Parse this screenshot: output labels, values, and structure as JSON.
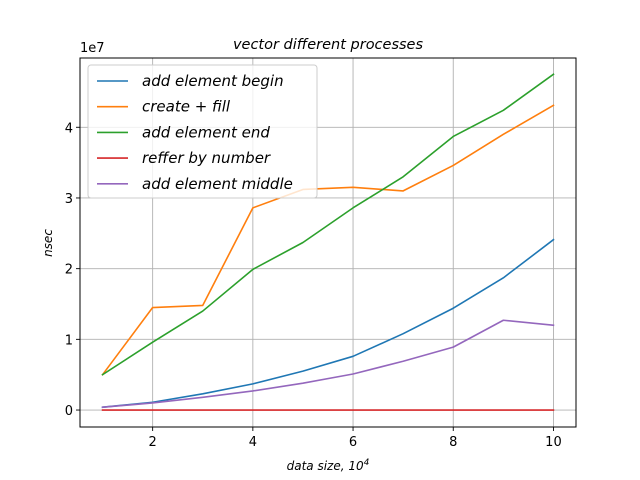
{
  "chart_data": {
    "type": "line",
    "title": "vector different processes",
    "xlabel": "data size, 10^4",
    "xlabel_text": "data size, 10",
    "xlabel_sup": "4",
    "ylabel": "nsec",
    "y_multiplier": "1e7",
    "xlim": [
      0.55,
      10.45
    ],
    "ylim": [
      -0.24,
      4.98
    ],
    "xticks": [
      2,
      4,
      6,
      8,
      10
    ],
    "yticks": [
      0,
      1,
      2,
      3,
      4
    ],
    "grid": true,
    "legend_position": "upper-left",
    "x": [
      1,
      2,
      3,
      4,
      5,
      6,
      7,
      8,
      9,
      10
    ],
    "series": [
      {
        "name": "add element begin",
        "color": "#1f77b4",
        "values": [
          0.04,
          0.11,
          0.23,
          0.37,
          0.55,
          0.76,
          1.08,
          1.44,
          1.87,
          2.41
        ]
      },
      {
        "name": "create  +  fill",
        "color": "#ff7f0e",
        "values": [
          0.5,
          1.45,
          1.48,
          2.86,
          3.12,
          3.15,
          3.1,
          3.46,
          3.9,
          4.31
        ]
      },
      {
        "name": "add element end",
        "color": "#2ca02c",
        "values": [
          0.5,
          0.96,
          1.4,
          1.99,
          2.37,
          2.86,
          3.3,
          3.87,
          4.24,
          4.75
        ]
      },
      {
        "name": "reffer by number",
        "color": "#d62728",
        "values": [
          0.0,
          0.0,
          0.0,
          0.0,
          0.0,
          0.0,
          0.0,
          0.0,
          0.0,
          0.0
        ]
      },
      {
        "name": "add element middle",
        "color": "#9467bd",
        "values": [
          0.04,
          0.1,
          0.18,
          0.27,
          0.38,
          0.51,
          0.69,
          0.89,
          1.27,
          1.2
        ]
      }
    ]
  }
}
